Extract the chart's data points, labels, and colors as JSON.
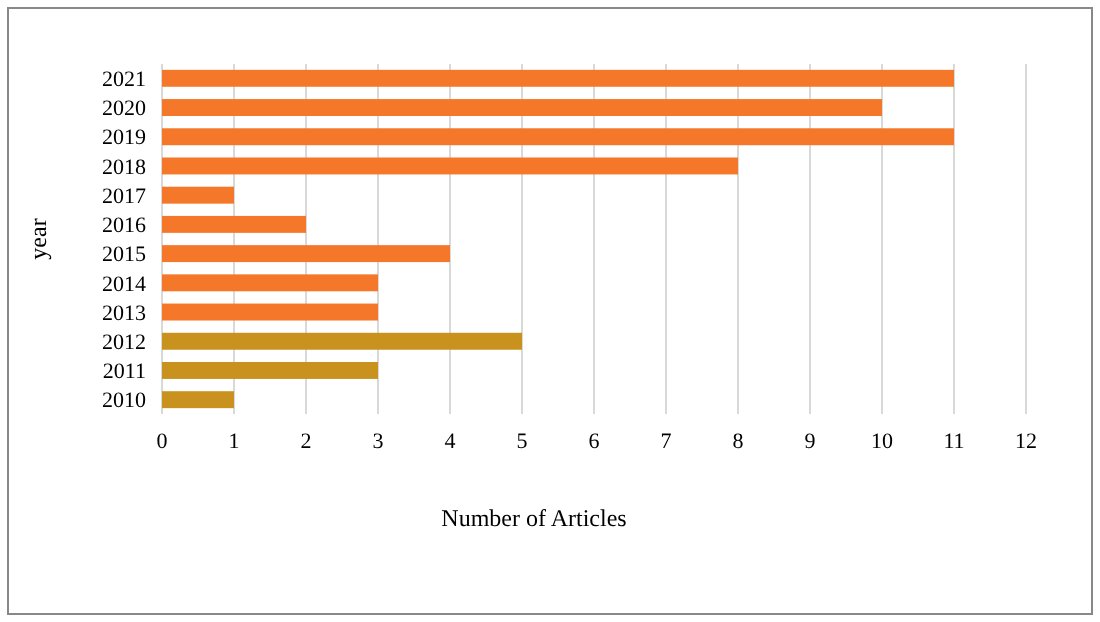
{
  "chart_data": {
    "type": "bar",
    "orientation": "horizontal",
    "xlabel": "Number of Articles",
    "ylabel": "year",
    "categories": [
      "2021",
      "2020",
      "2019",
      "2018",
      "2017",
      "2016",
      "2015",
      "2014",
      "2013",
      "2012",
      "2011",
      "2010"
    ],
    "values": [
      11,
      10,
      11,
      8,
      1,
      2,
      4,
      3,
      3,
      5,
      3,
      1
    ],
    "colors": [
      "#f5782a",
      "#f5782a",
      "#f5782a",
      "#f5782a",
      "#f5782a",
      "#f5782a",
      "#f5782a",
      "#f5782a",
      "#f5782a",
      "#c9921e",
      "#c9921e",
      "#c9921e"
    ],
    "xlim": [
      0,
      12
    ],
    "xticks": [
      0,
      1,
      2,
      3,
      4,
      5,
      6,
      7,
      8,
      9,
      10,
      11,
      12
    ],
    "grid": "x"
  }
}
